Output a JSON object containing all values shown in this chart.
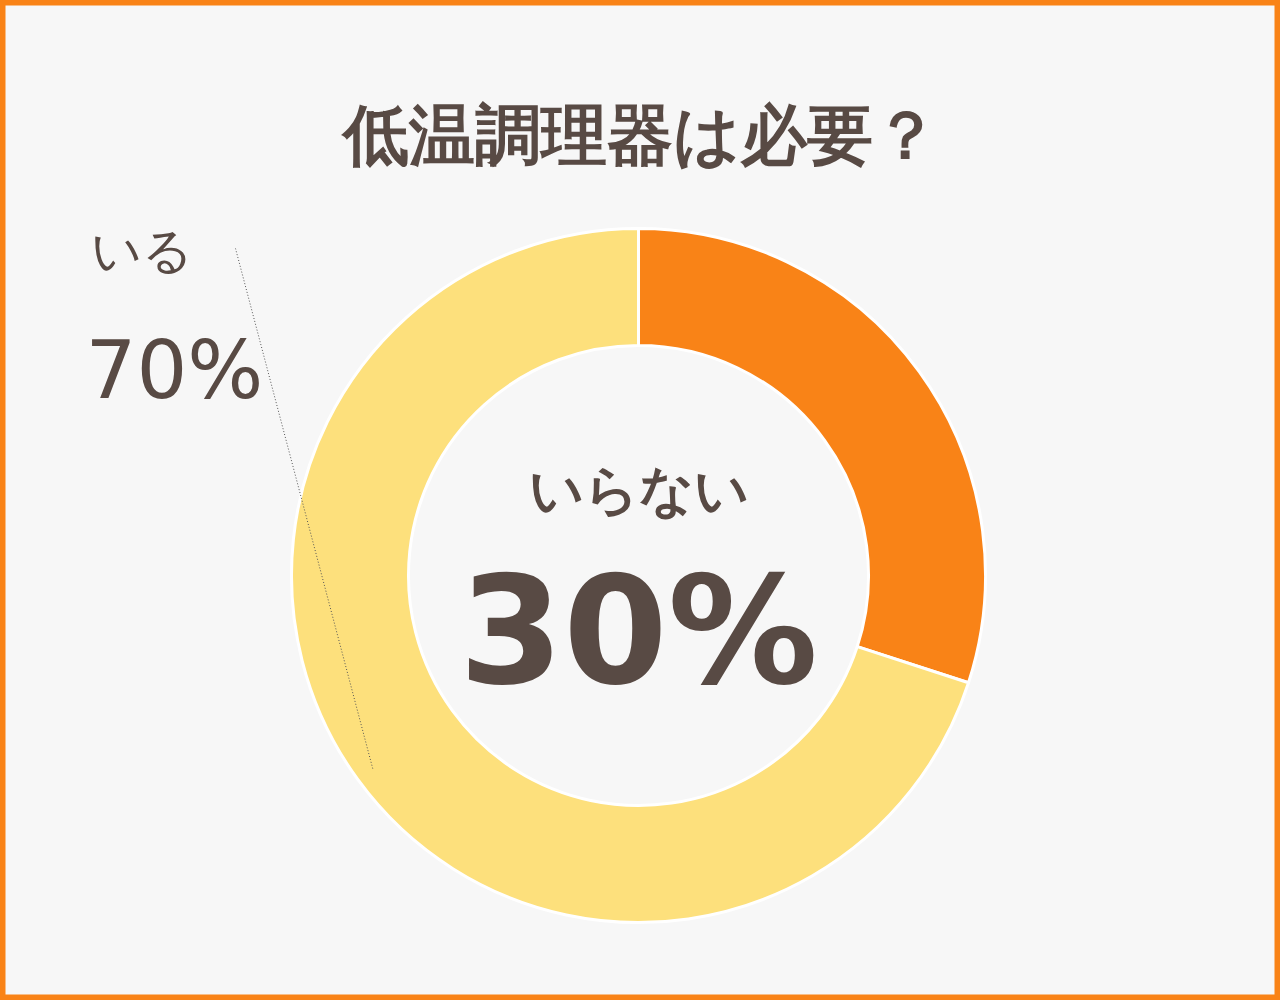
{
  "chart_data": {
    "type": "donut",
    "title": "低温調理器は必要？",
    "categories": [
      "いらない",
      "いる"
    ],
    "values": [
      30,
      70
    ],
    "colors": [
      "#f98317",
      "#fde07c"
    ],
    "value_labels": [
      "30%",
      "70%"
    ]
  }
}
